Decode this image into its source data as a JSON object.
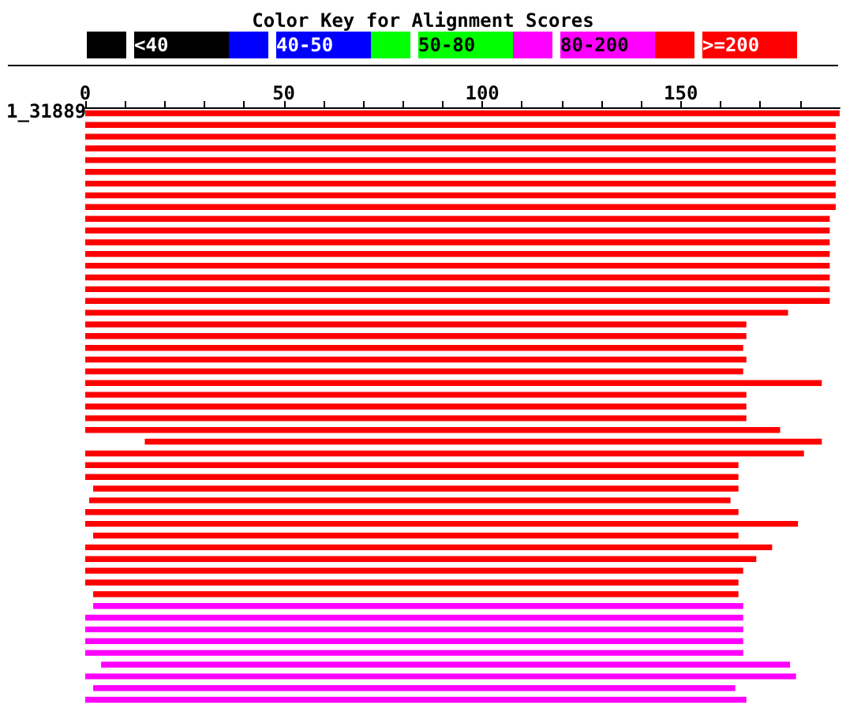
{
  "chart_data": [
    {
      "type": "other",
      "title": "Color Key for Alignment Scores",
      "categories": [
        "<40",
        "40-50",
        "50-80",
        "80-200",
        ">=200"
      ],
      "colors": [
        "#000000",
        "#0000ff",
        "#00ff00",
        "#ff00ff",
        "#ff0000"
      ]
    },
    {
      "type": "bar",
      "orientation": "horizontal",
      "annotations": [
        "1_31889"
      ],
      "categories": [
        null,
        null,
        null,
        null,
        null,
        null,
        null,
        null,
        null,
        null,
        null,
        null,
        null,
        null,
        null,
        null,
        null,
        null,
        null,
        null,
        null,
        null,
        null,
        null,
        null,
        null,
        null,
        null,
        null,
        null,
        null,
        null,
        null,
        null,
        null,
        null,
        null,
        null,
        null,
        null,
        null,
        null,
        null,
        null,
        null,
        null,
        null,
        null,
        null,
        null,
        null
      ],
      "base": [
        0,
        0,
        0,
        0,
        0,
        0,
        0,
        0,
        0,
        0,
        0,
        0,
        0,
        0,
        0,
        0,
        0,
        0,
        0,
        0,
        0,
        0,
        0,
        0,
        0,
        0,
        0,
        0,
        15,
        0,
        0,
        0,
        2,
        1,
        0,
        0,
        2,
        0,
        0,
        0,
        0,
        2,
        2,
        0,
        0,
        0,
        0,
        4,
        0,
        2,
        0
      ],
      "values": [
        190,
        189,
        189,
        189,
        189,
        189,
        189,
        189,
        189,
        187.5,
        187.5,
        187.5,
        187.5,
        187.5,
        187.5,
        187.5,
        187.5,
        177,
        166.5,
        166.5,
        165.7,
        166.5,
        165.7,
        185.5,
        166.5,
        166.5,
        166.5,
        175,
        170.5,
        181,
        164.5,
        164.5,
        162.5,
        161.5,
        164.5,
        179.5,
        162.5,
        173,
        169,
        165.7,
        164.5,
        162.5,
        163.7,
        165.7,
        165.7,
        165.7,
        165.7,
        173.5,
        179,
        161.7,
        166.5
      ],
      "colors": [
        "#ff0000",
        "#ff0000",
        "#ff0000",
        "#ff0000",
        "#ff0000",
        "#ff0000",
        "#ff0000",
        "#ff0000",
        "#ff0000",
        "#ff0000",
        "#ff0000",
        "#ff0000",
        "#ff0000",
        "#ff0000",
        "#ff0000",
        "#ff0000",
        "#ff0000",
        "#ff0000",
        "#ff0000",
        "#ff0000",
        "#ff0000",
        "#ff0000",
        "#ff0000",
        "#ff0000",
        "#ff0000",
        "#ff0000",
        "#ff0000",
        "#ff0000",
        "#ff0000",
        "#ff0000",
        "#ff0000",
        "#ff0000",
        "#ff0000",
        "#ff0000",
        "#ff0000",
        "#ff0000",
        "#ff0000",
        "#ff0000",
        "#ff0000",
        "#ff0000",
        "#ff0000",
        "#ff0000",
        "#ff00ff",
        "#ff00ff",
        "#ff00ff",
        "#ff00ff",
        "#ff00ff",
        "#ff00ff",
        "#ff00ff",
        "#ff00ff",
        "#ff00ff"
      ],
      "xlim": [
        0,
        190
      ],
      "xticks": [
        0,
        {
          "value": 10,
          "label": null
        },
        {
          "value": 20,
          "label": null
        },
        {
          "value": 30,
          "label": null
        },
        {
          "value": 40,
          "label": null
        },
        50,
        {
          "value": 60,
          "label": null
        },
        {
          "value": 70,
          "label": null
        },
        {
          "value": 80,
          "label": null
        },
        {
          "value": 90,
          "label": null
        },
        100,
        {
          "value": 110,
          "label": null
        },
        {
          "value": 120,
          "label": null
        },
        {
          "value": 130,
          "label": null
        },
        {
          "value": 140,
          "label": null
        },
        150,
        {
          "value": 160,
          "label": null
        },
        {
          "value": 170,
          "label": null
        },
        {
          "value": 180,
          "label": null
        }
      ]
    }
  ]
}
